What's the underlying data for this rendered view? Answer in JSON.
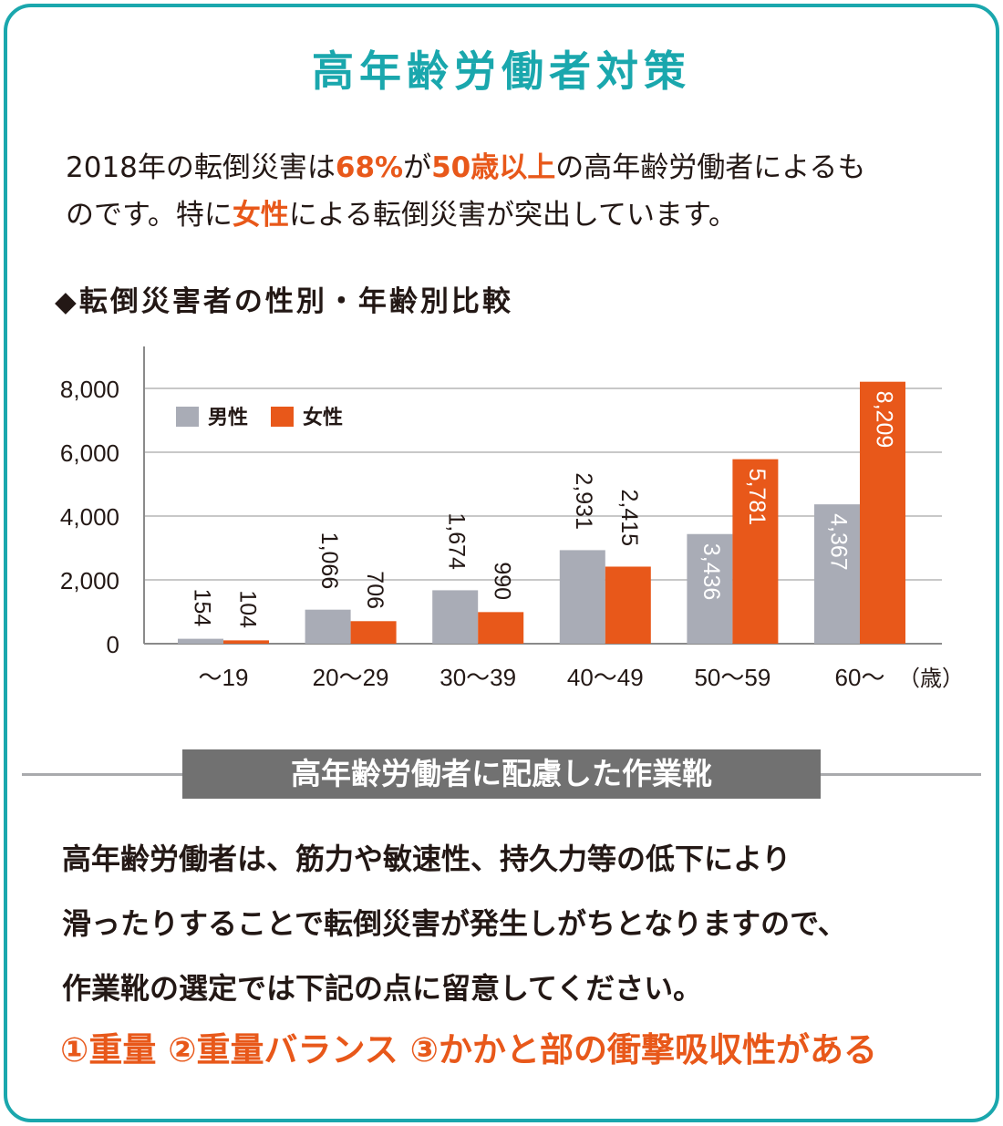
{
  "title": "高年齢労働者対策",
  "intro": {
    "l1_a": "2018年の転倒災害は",
    "l1_b": "68%",
    "l1_c": "が",
    "l1_d": "50歳以上",
    "l1_e": "の高年齢労働者によるも",
    "l2_a": "のです。特に",
    "l2_b": "女性",
    "l2_c": "による転倒災害が突出しています。"
  },
  "chart_heading": "◆転倒災害者の性別・年齢別比較",
  "chart_data": {
    "type": "bar",
    "categories": [
      "～19",
      "20～29",
      "30～39",
      "40～49",
      "50～59",
      "60～"
    ],
    "unit_label": "（歳）",
    "series": [
      {
        "name": "男性",
        "values": [
          154,
          1066,
          1674,
          2931,
          3436,
          4367
        ],
        "labels": [
          "154",
          "1,066",
          "1,674",
          "2,931",
          "3,436",
          "4,367"
        ]
      },
      {
        "name": "女性",
        "values": [
          104,
          706,
          990,
          2415,
          5781,
          8209
        ],
        "labels": [
          "104",
          "706",
          "990",
          "2,415",
          "5,781",
          "8,209"
        ]
      }
    ],
    "yticks": [
      "0",
      "2,000",
      "4,000",
      "6,000",
      "8,000"
    ],
    "ylim": [
      0,
      9000
    ],
    "grid": true,
    "legend": "top-left",
    "colors": {
      "男性": "#a9acb6",
      "女性": "#e8581a"
    }
  },
  "section_heading": "高年齢労働者に配慮した作業靴",
  "body": {
    "line1": "高年齢労働者は、筋力や敏速性、持久力等の低下により",
    "line2": "滑ったりすることで転倒災害が発生しがちとなりますので、",
    "line3": "作業靴の選定では下記の点に留意してください。"
  },
  "conclusion": "①重量 ②重量バランス ③かかと部の衝撃吸収性がある",
  "colors": {
    "accent": "#1aa7ad",
    "highlight": "#e8581a",
    "section_box": "#717171"
  }
}
